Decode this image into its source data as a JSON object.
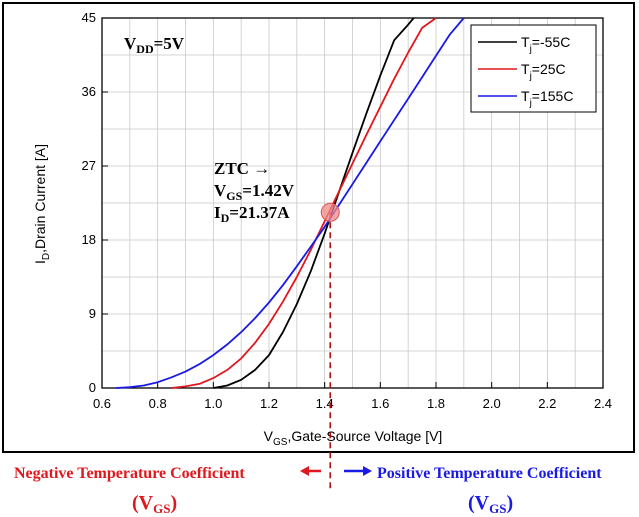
{
  "chart_data": {
    "type": "line",
    "xlabel": "V",
    "xlabel_sub": "GS",
    "xlabel_rest": ",Gate-Source Voltage [V]",
    "ylabel": "I",
    "ylabel_sub": "D",
    "ylabel_rest": ",Drain Current [A]",
    "xlim": [
      0.6,
      2.4
    ],
    "ylim": [
      0,
      45
    ],
    "xticks": [
      "0.6",
      "0.8",
      "1.0",
      "1.2",
      "1.4",
      "1.6",
      "1.8",
      "2.0",
      "2.2",
      "2.4"
    ],
    "yticks": [
      "0",
      "9",
      "18",
      "27",
      "36",
      "45"
    ],
    "grid": true,
    "legend_position": "top-right",
    "series": [
      {
        "name": "T_j=-55C",
        "legend_main": "T",
        "legend_sub": "j",
        "legend_rest": "=-55C",
        "color": "#000000",
        "x": [
          1.0,
          1.05,
          1.1,
          1.15,
          1.2,
          1.25,
          1.3,
          1.35,
          1.4,
          1.45,
          1.5,
          1.55,
          1.6,
          1.65,
          1.7,
          1.72
        ],
        "y": [
          0,
          0.3,
          1.0,
          2.2,
          4.0,
          6.8,
          10.2,
          14.2,
          18.8,
          23.7,
          28.6,
          33.4,
          38.0,
          42.3,
          44.2,
          45
        ]
      },
      {
        "name": "T_j=25C",
        "legend_main": "T",
        "legend_sub": "j",
        "legend_rest": "=25C",
        "color": "#e0181e",
        "x": [
          0.85,
          0.9,
          0.95,
          1.0,
          1.05,
          1.1,
          1.15,
          1.2,
          1.25,
          1.3,
          1.35,
          1.4,
          1.45,
          1.5,
          1.55,
          1.6,
          1.65,
          1.7,
          1.75,
          1.8
        ],
        "y": [
          0,
          0.2,
          0.5,
          1.2,
          2.2,
          3.6,
          5.5,
          7.8,
          10.5,
          13.5,
          16.8,
          20.3,
          23.8,
          27.3,
          30.8,
          34.2,
          37.6,
          40.8,
          43.8,
          45
        ]
      },
      {
        "name": "T_j=155C",
        "legend_main": "T",
        "legend_sub": "j",
        "legend_rest": "=155C",
        "color": "#1a1ae6",
        "x": [
          0.65,
          0.7,
          0.75,
          0.8,
          0.85,
          0.9,
          0.95,
          1.0,
          1.05,
          1.1,
          1.15,
          1.2,
          1.25,
          1.3,
          1.35,
          1.4,
          1.45,
          1.5,
          1.55,
          1.6,
          1.65,
          1.7,
          1.75,
          1.8,
          1.85,
          1.9
        ],
        "y": [
          0,
          0.1,
          0.3,
          0.7,
          1.3,
          2.0,
          2.9,
          4.0,
          5.3,
          6.8,
          8.5,
          10.4,
          12.5,
          14.8,
          17.2,
          19.6,
          22.2,
          24.8,
          27.4,
          30.0,
          32.6,
          35.2,
          37.8,
          40.4,
          43.0,
          45
        ]
      }
    ],
    "annotations": {
      "vdd_main": "V",
      "vdd_sub": "DD",
      "vdd_rest": "=5V",
      "ztc_line1": "ZTC →",
      "ztc_vgs_main": "V",
      "ztc_vgs_sub": "GS",
      "ztc_vgs_rest": "=1.42V",
      "ztc_id_main": "I",
      "ztc_id_sub": "D",
      "ztc_id_rest": "=21.37A",
      "ztc_point": {
        "x": 1.42,
        "y": 21.37
      }
    }
  },
  "bottom": {
    "negative_label": "Negative Temperature Coefficient",
    "positive_label": "Positive Temperature Coefficient",
    "sym_main": "(V",
    "sym_sub": "GS",
    "sym_close": ")",
    "negative_color": "#e0181e",
    "positive_color": "#1a1ae6"
  }
}
